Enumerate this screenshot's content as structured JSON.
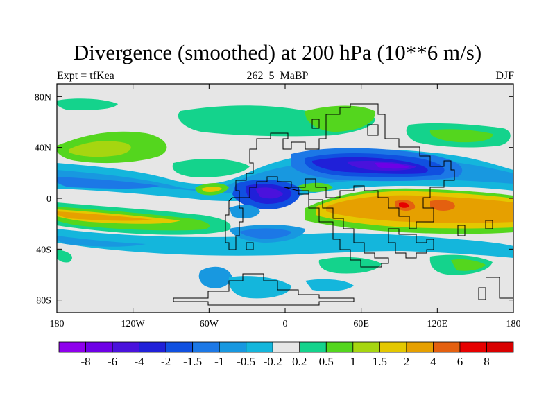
{
  "title": "Divergence (smoothed) at 200 hPa (10**6 m/s)",
  "subtitle_left": "Expt = tfKea",
  "subtitle_center": "262_5_MaBP",
  "subtitle_right": "DJF",
  "chart_data": {
    "type": "heatmap",
    "field": "Divergence (smoothed) at 200 hPa",
    "units": "10**6 m/s",
    "x_ticks": [
      "180",
      "120W",
      "60W",
      "0",
      "60E",
      "120E",
      "180"
    ],
    "y_ticks": [
      "80N",
      "40N",
      "0",
      "40S",
      "80S"
    ],
    "xlim": [
      -180,
      180
    ],
    "ylim": [
      -90,
      90
    ],
    "x_tick_values": [
      -180,
      -120,
      -60,
      0,
      60,
      120,
      180
    ],
    "y_tick_values": [
      80,
      40,
      0,
      -40,
      -80
    ],
    "contour_levels": [
      "-8",
      "-6",
      "-4",
      "-2",
      "-1.5",
      "-1",
      "-0.5",
      "-0.2",
      "0.2",
      "0.5",
      "1",
      "1.5",
      "2",
      "4",
      "6",
      "8"
    ],
    "colorbar_colors": [
      "#8e00ec",
      "#6e00e6",
      "#4a12dc",
      "#2020d8",
      "#1050e0",
      "#1c78e6",
      "#1898e0",
      "#14b6dc",
      "#e6e6e6",
      "#14d38c",
      "#54d61e",
      "#a6d610",
      "#e4c800",
      "#e6a000",
      "#e46010",
      "#e60000",
      "#d80000"
    ],
    "regions": [
      {
        "label": "tropical Pacific divergence band",
        "level": "1.5 to 4",
        "lon": [
          -180,
          -100
        ],
        "lat": [
          -15,
          -5
        ]
      },
      {
        "label": "Indian Ocean / West Pacific divergence maximum",
        "level": "4 to 6",
        "lon": [
          40,
          180
        ],
        "lat": [
          -20,
          5
        ]
      },
      {
        "label": "subtropical Asian convergence",
        "level": "-6 to -4",
        "lon": [
          20,
          150
        ],
        "lat": [
          25,
          40
        ]
      },
      {
        "label": "tropical Atlantic convergence",
        "level": "-4 to -2",
        "lon": [
          -40,
          10
        ],
        "lat": [
          -5,
          10
        ]
      },
      {
        "label": "North Pacific convergence band",
        "level": "-1.5 to -0.5",
        "lon": [
          -180,
          -100
        ],
        "lat": [
          5,
          25
        ]
      },
      {
        "label": "mid-latitude North Pacific divergence",
        "level": "0.5 to 1.5",
        "lon": [
          -180,
          -120
        ],
        "lat": [
          35,
          55
        ]
      },
      {
        "label": "Central Asian divergence",
        "level": "0.5 to 1.5",
        "lon": [
          30,
          100
        ],
        "lat": [
          50,
          65
        ]
      }
    ]
  }
}
